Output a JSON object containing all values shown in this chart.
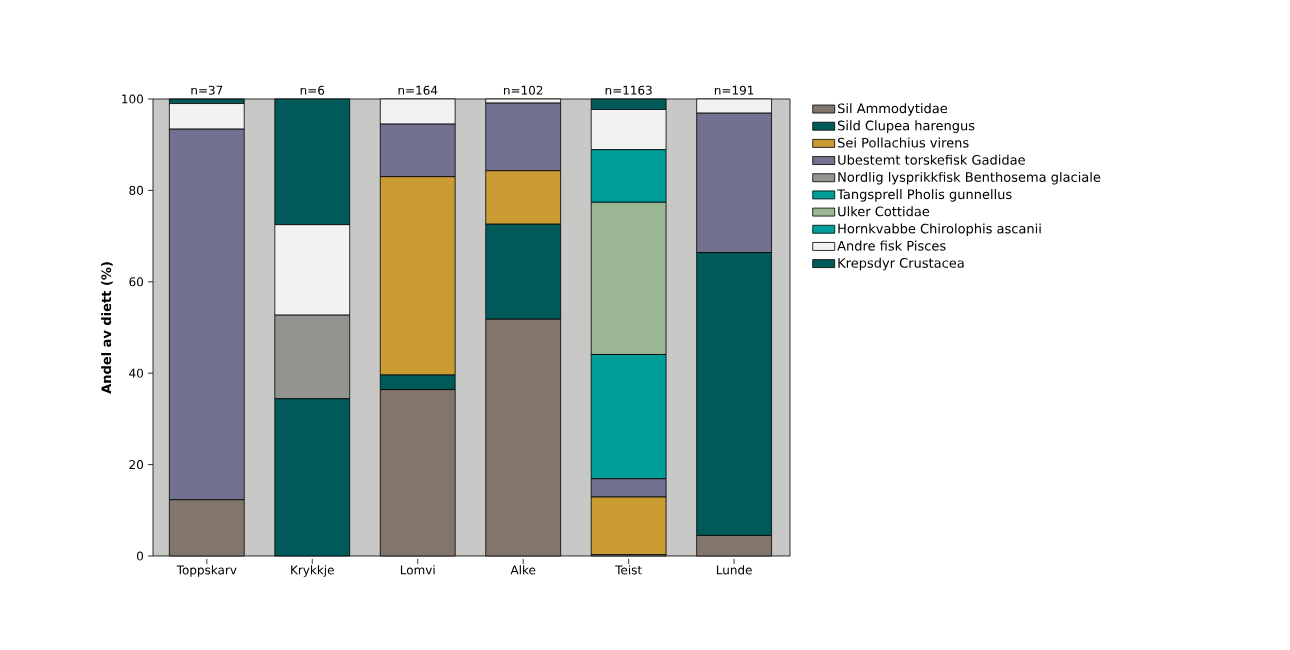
{
  "chart_data": {
    "type": "bar",
    "stacked": true,
    "ylabel": "Andel av diett (%)",
    "categories": [
      "Toppskarv",
      "Krykkje",
      "Lomvi",
      "Alke",
      "Teist",
      "Lunde"
    ],
    "series": [
      {
        "name": "Sil Ammodytidae",
        "color": "#82766c",
        "values": [
          12.3,
          null,
          36.4,
          51.8,
          0.3,
          4.5
        ]
      },
      {
        "name": "Sild Clupea harengus",
        "color": "#005a5a",
        "values": [
          null,
          34.4,
          3.2,
          20.8,
          null,
          61.9
        ]
      },
      {
        "name": "Sei Pollachius virens",
        "color": "#c99b32",
        "values": [
          null,
          null,
          43.4,
          11.7,
          12.6,
          null
        ]
      },
      {
        "name": "Ubestemt torskefisk Gadidae",
        "color": "#72718f",
        "values": [
          81.1,
          null,
          11.5,
          14.8,
          4.0,
          30.5
        ]
      },
      {
        "name": "Nordlig lysprikkfisk Benthosema glaciale",
        "color": "#939390",
        "values": [
          null,
          18.3,
          null,
          null,
          null,
          null
        ]
      },
      {
        "name": "Tangsprell Pholis gunnellus",
        "color": "#009e9b",
        "values": [
          null,
          null,
          null,
          null,
          27.2,
          null
        ]
      },
      {
        "name": "Ulker  Cottidae",
        "color": "#9bb692",
        "values": [
          null,
          null,
          null,
          null,
          33.3,
          null
        ]
      },
      {
        "name": "Hornkvabbe Chirolophis ascanii",
        "color": "#009e9b",
        "values": [
          null,
          null,
          null,
          null,
          11.5,
          null
        ]
      },
      {
        "name": "Andre fisk Pisces",
        "color": "#f2f2f2",
        "values": [
          5.6,
          19.8,
          5.5,
          0.9,
          8.8,
          3.1
        ]
      },
      {
        "name": "Krepsdyr Crustacea",
        "color": "#005a5a",
        "values": [
          1.0,
          27.5,
          null,
          null,
          2.3,
          null
        ]
      }
    ],
    "annotations": [
      "n=37",
      "n=6",
      "n=164",
      "n=102",
      "n=1163",
      "n=191"
    ],
    "ylim": [
      0,
      100
    ],
    "yticks": [
      0,
      20,
      40,
      60,
      80,
      100
    ],
    "legend": "right"
  }
}
